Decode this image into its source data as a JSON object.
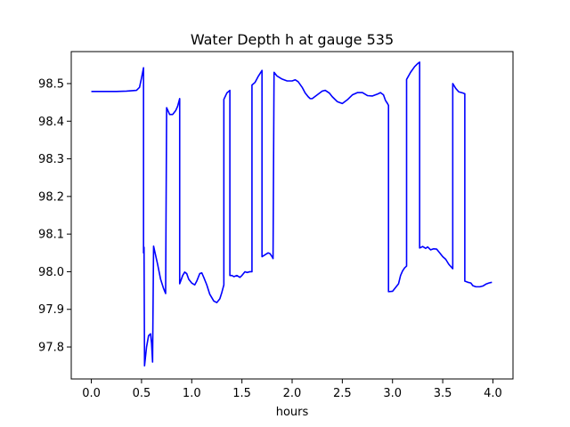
{
  "chart_data": {
    "type": "line",
    "title": "Water Depth h at gauge 535",
    "xlabel": "hours",
    "ylabel": "",
    "xlim": [
      -0.2,
      4.2
    ],
    "ylim": [
      97.715,
      98.585
    ],
    "xticks": [
      0.0,
      0.5,
      1.0,
      1.5,
      2.0,
      2.5,
      3.0,
      3.5,
      4.0
    ],
    "xtick_labels": [
      "0.0",
      "0.5",
      "1.0",
      "1.5",
      "2.0",
      "2.5",
      "3.0",
      "3.5",
      "4.0"
    ],
    "yticks": [
      97.8,
      97.9,
      98.0,
      98.1,
      98.2,
      98.3,
      98.4,
      98.5
    ],
    "ytick_labels": [
      "97.8",
      "97.9",
      "98.0",
      "98.1",
      "98.2",
      "98.3",
      "98.4",
      "98.5"
    ],
    "grid": false,
    "series": [
      {
        "color": "#0000ff",
        "points": [
          [
            0.0,
            98.479
          ],
          [
            0.25,
            98.479
          ],
          [
            0.35,
            98.48
          ],
          [
            0.45,
            98.482
          ],
          [
            0.48,
            98.49
          ],
          [
            0.5,
            98.515
          ],
          [
            0.52,
            98.542
          ],
          [
            0.52,
            98.05
          ],
          [
            0.525,
            98.065
          ],
          [
            0.53,
            97.75
          ],
          [
            0.55,
            97.8
          ],
          [
            0.57,
            97.83
          ],
          [
            0.59,
            97.835
          ],
          [
            0.6,
            97.81
          ],
          [
            0.61,
            97.76
          ],
          [
            0.62,
            98.068
          ],
          [
            0.66,
            98.02
          ],
          [
            0.69,
            97.98
          ],
          [
            0.72,
            97.955
          ],
          [
            0.74,
            97.942
          ],
          [
            0.75,
            98.436
          ],
          [
            0.78,
            98.418
          ],
          [
            0.81,
            98.418
          ],
          [
            0.84,
            98.428
          ],
          [
            0.86,
            98.44
          ],
          [
            0.88,
            98.46
          ],
          [
            0.88,
            97.968
          ],
          [
            0.91,
            97.99
          ],
          [
            0.93,
            97.999
          ],
          [
            0.95,
            97.995
          ],
          [
            0.97,
            97.98
          ],
          [
            1.0,
            97.97
          ],
          [
            1.03,
            97.965
          ],
          [
            1.05,
            97.975
          ],
          [
            1.08,
            97.995
          ],
          [
            1.1,
            97.997
          ],
          [
            1.12,
            97.985
          ],
          [
            1.15,
            97.965
          ],
          [
            1.18,
            97.94
          ],
          [
            1.22,
            97.922
          ],
          [
            1.25,
            97.918
          ],
          [
            1.28,
            97.928
          ],
          [
            1.3,
            97.945
          ],
          [
            1.32,
            97.965
          ],
          [
            1.32,
            98.458
          ],
          [
            1.35,
            98.475
          ],
          [
            1.38,
            98.482
          ],
          [
            1.38,
            97.99
          ],
          [
            1.4,
            97.99
          ],
          [
            1.42,
            97.987
          ],
          [
            1.45,
            97.99
          ],
          [
            1.48,
            97.985
          ],
          [
            1.5,
            97.99
          ],
          [
            1.53,
            98.0
          ],
          [
            1.55,
            97.998
          ],
          [
            1.58,
            98.0
          ],
          [
            1.6,
            98.0
          ],
          [
            1.6,
            98.496
          ],
          [
            1.63,
            98.503
          ],
          [
            1.66,
            98.518
          ],
          [
            1.7,
            98.535
          ],
          [
            1.7,
            98.04
          ],
          [
            1.73,
            98.045
          ],
          [
            1.76,
            98.05
          ],
          [
            1.78,
            98.048
          ],
          [
            1.8,
            98.04
          ],
          [
            1.81,
            98.035
          ],
          [
            1.82,
            98.53
          ],
          [
            1.85,
            98.52
          ],
          [
            1.9,
            98.512
          ],
          [
            1.95,
            98.507
          ],
          [
            2.0,
            98.507
          ],
          [
            2.03,
            98.51
          ],
          [
            2.06,
            98.505
          ],
          [
            2.1,
            98.49
          ],
          [
            2.13,
            98.475
          ],
          [
            2.16,
            98.465
          ],
          [
            2.18,
            98.46
          ],
          [
            2.2,
            98.46
          ],
          [
            2.25,
            98.47
          ],
          [
            2.3,
            98.48
          ],
          [
            2.33,
            98.482
          ],
          [
            2.37,
            98.475
          ],
          [
            2.4,
            98.465
          ],
          [
            2.45,
            98.452
          ],
          [
            2.5,
            98.447
          ],
          [
            2.55,
            98.457
          ],
          [
            2.6,
            98.47
          ],
          [
            2.65,
            98.476
          ],
          [
            2.7,
            98.476
          ],
          [
            2.75,
            98.468
          ],
          [
            2.8,
            98.467
          ],
          [
            2.85,
            98.472
          ],
          [
            2.88,
            98.476
          ],
          [
            2.91,
            98.47
          ],
          [
            2.93,
            98.455
          ],
          [
            2.95,
            98.447
          ],
          [
            2.96,
            98.442
          ],
          [
            2.96,
            97.947
          ],
          [
            3.0,
            97.948
          ],
          [
            3.03,
            97.958
          ],
          [
            3.06,
            97.968
          ],
          [
            3.08,
            97.99
          ],
          [
            3.1,
            98.002
          ],
          [
            3.12,
            98.01
          ],
          [
            3.14,
            98.015
          ],
          [
            3.14,
            98.511
          ],
          [
            3.18,
            98.53
          ],
          [
            3.22,
            98.545
          ],
          [
            3.25,
            98.553
          ],
          [
            3.27,
            98.557
          ],
          [
            3.27,
            98.063
          ],
          [
            3.3,
            98.067
          ],
          [
            3.33,
            98.062
          ],
          [
            3.35,
            98.066
          ],
          [
            3.38,
            98.058
          ],
          [
            3.41,
            98.061
          ],
          [
            3.44,
            98.06
          ],
          [
            3.47,
            98.05
          ],
          [
            3.5,
            98.04
          ],
          [
            3.53,
            98.033
          ],
          [
            3.56,
            98.02
          ],
          [
            3.6,
            98.008
          ],
          [
            3.6,
            98.5
          ],
          [
            3.63,
            98.487
          ],
          [
            3.66,
            98.478
          ],
          [
            3.7,
            98.475
          ],
          [
            3.72,
            98.473
          ],
          [
            3.72,
            97.975
          ],
          [
            3.75,
            97.972
          ],
          [
            3.78,
            97.97
          ],
          [
            3.8,
            97.963
          ],
          [
            3.83,
            97.96
          ],
          [
            3.87,
            97.96
          ],
          [
            3.9,
            97.962
          ],
          [
            3.93,
            97.967
          ],
          [
            3.96,
            97.97
          ],
          [
            3.99,
            97.972
          ]
        ]
      }
    ]
  }
}
